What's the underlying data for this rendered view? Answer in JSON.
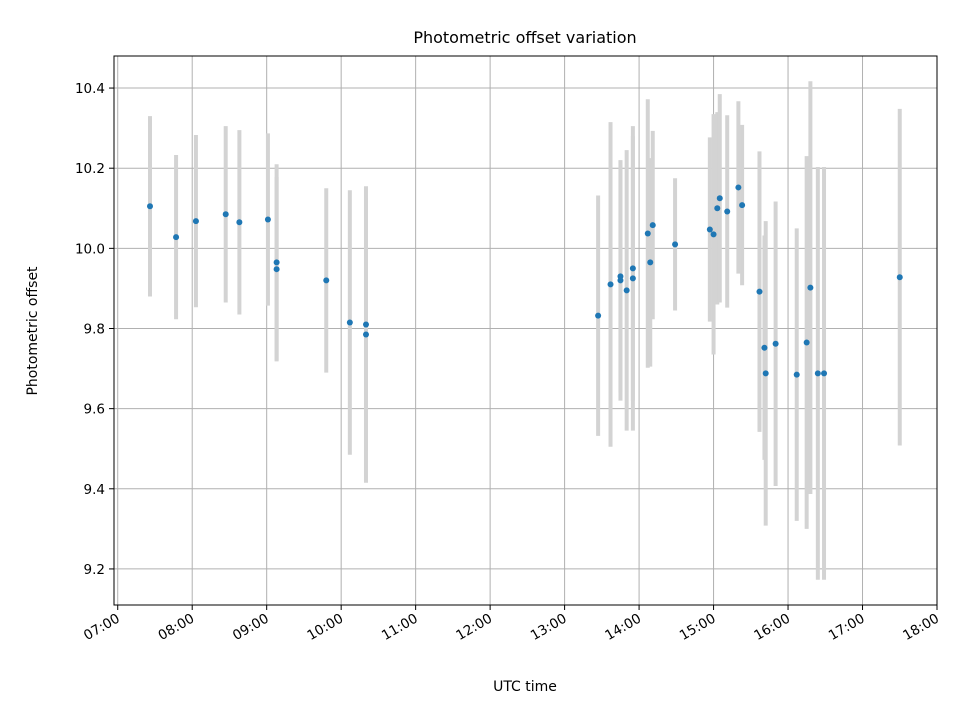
{
  "chart_data": {
    "type": "scatter",
    "title": "Photometric offset variation",
    "xlabel": "UTC time",
    "ylabel": "Photometric offset",
    "x_ticks": [
      "07:00",
      "08:00",
      "09:00",
      "10:00",
      "11:00",
      "12:00",
      "13:00",
      "14:00",
      "15:00",
      "16:00",
      "17:00",
      "18:00"
    ],
    "y_ticks": [
      "9.2",
      "9.4",
      "9.6",
      "9.8",
      "10.0",
      "10.2",
      "10.4"
    ],
    "xlim": [
      "06:57",
      "18:00"
    ],
    "ylim": [
      9.11,
      10.48
    ],
    "grid": true,
    "colors": {
      "point": "#1f77b4",
      "errorbar": "#d3d3d3",
      "grid": "#b0b0b0"
    },
    "points": [
      {
        "x": "07:26",
        "y": 10.105,
        "err": 0.225
      },
      {
        "x": "07:47",
        "y": 10.028,
        "err": 0.205
      },
      {
        "x": "08:03",
        "y": 10.068,
        "err": 0.215
      },
      {
        "x": "08:27",
        "y": 10.085,
        "err": 0.22
      },
      {
        "x": "08:38",
        "y": 10.065,
        "err": 0.23
      },
      {
        "x": "09:01",
        "y": 10.072,
        "err": 0.215
      },
      {
        "x": "09:08",
        "y": 9.965,
        "err": 0.245
      },
      {
        "x": "09:08",
        "y": 9.948,
        "err": 0.23
      },
      {
        "x": "09:48",
        "y": 9.92,
        "err": 0.23
      },
      {
        "x": "10:07",
        "y": 9.815,
        "err": 0.33
      },
      {
        "x": "10:20",
        "y": 9.785,
        "err": 0.37
      },
      {
        "x": "10:20",
        "y": 9.81,
        "err": 0.315
      },
      {
        "x": "13:27",
        "y": 9.832,
        "err": 0.3
      },
      {
        "x": "13:37",
        "y": 9.91,
        "err": 0.405
      },
      {
        "x": "13:45",
        "y": 9.92,
        "err": 0.3
      },
      {
        "x": "13:45",
        "y": 9.93,
        "err": 0.29
      },
      {
        "x": "13:50",
        "y": 9.895,
        "err": 0.35
      },
      {
        "x": "13:55",
        "y": 9.95,
        "err": 0.33
      },
      {
        "x": "13:55",
        "y": 9.925,
        "err": 0.38
      },
      {
        "x": "14:07",
        "y": 10.037,
        "err": 0.335
      },
      {
        "x": "14:09",
        "y": 9.965,
        "err": 0.26
      },
      {
        "x": "14:11",
        "y": 10.058,
        "err": 0.235
      },
      {
        "x": "14:29",
        "y": 10.01,
        "err": 0.165
      },
      {
        "x": "14:57",
        "y": 10.047,
        "err": 0.23
      },
      {
        "x": "15:00",
        "y": 10.035,
        "err": 0.3
      },
      {
        "x": "15:03",
        "y": 10.1,
        "err": 0.24
      },
      {
        "x": "15:05",
        "y": 10.125,
        "err": 0.26
      },
      {
        "x": "15:11",
        "y": 10.092,
        "err": 0.24
      },
      {
        "x": "15:20",
        "y": 10.152,
        "err": 0.215
      },
      {
        "x": "15:23",
        "y": 10.108,
        "err": 0.2
      },
      {
        "x": "15:37",
        "y": 9.892,
        "err": 0.35
      },
      {
        "x": "15:41",
        "y": 9.752,
        "err": 0.28
      },
      {
        "x": "15:42",
        "y": 9.688,
        "err": 0.38
      },
      {
        "x": "15:50",
        "y": 9.762,
        "err": 0.355
      },
      {
        "x": "16:07",
        "y": 9.685,
        "err": 0.365
      },
      {
        "x": "16:15",
        "y": 9.765,
        "err": 0.465
      },
      {
        "x": "16:18",
        "y": 9.902,
        "err": 0.515
      },
      {
        "x": "16:24",
        "y": 9.688,
        "err": 0.515
      },
      {
        "x": "16:29",
        "y": 9.688,
        "err": 0.515
      },
      {
        "x": "17:30",
        "y": 9.928,
        "err": 0.42
      }
    ]
  }
}
